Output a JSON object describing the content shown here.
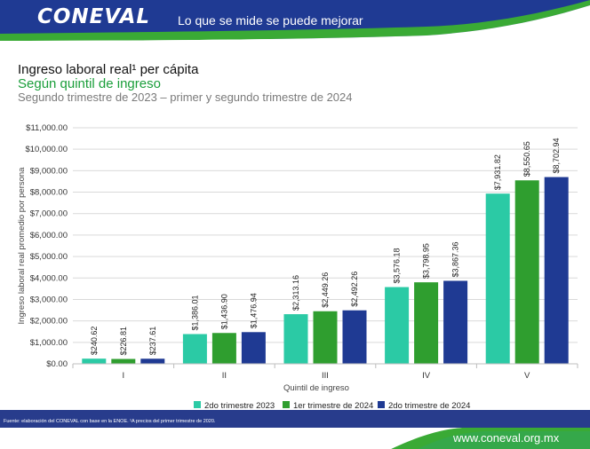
{
  "header": {
    "logo_text": "CONEVAL",
    "slogan": "Lo que se mide se puede mejorar"
  },
  "titles": {
    "line1": "Ingreso laboral real¹ per cápita",
    "line2": "Según quintil de ingreso",
    "line3": "Segundo trimestre de 2023 – primer y segundo trimestre de 2024"
  },
  "footer": {
    "source": "Fuente: elaboración del CONEVAL con base en la ENOE. ¹A precios del primer trimestre de 2020.",
    "url": "www.coneval.org.mx"
  },
  "colors": {
    "header_blue": "#1f3a93",
    "header_green": "#3aaa35",
    "footer_blue": "#283c8c"
  },
  "chart_data": {
    "type": "bar",
    "categories": [
      "I",
      "II",
      "III",
      "IV",
      "V"
    ],
    "series": [
      {
        "name": "2do trimestre 2023",
        "color": "#2bcaa5",
        "values": [
          240.62,
          1386.01,
          2313.16,
          3576.18,
          7931.82
        ],
        "labels": [
          "$240.62",
          "$1,386.01",
          "$2,313.16",
          "$3,576.18",
          "$7,931.82"
        ]
      },
      {
        "name": "1er trimestre de 2024",
        "color": "#2f9e2f",
        "values": [
          226.81,
          1436.9,
          2449.26,
          3798.95,
          8550.65
        ],
        "labels": [
          "$226.81",
          "$1,436.90",
          "$2,449.26",
          "$3,798.95",
          "$8,550.65"
        ]
      },
      {
        "name": "2do trimestre de 2024",
        "color": "#1f3a93",
        "values": [
          237.61,
          1476.94,
          2492.26,
          3867.36,
          8702.94
        ],
        "labels": [
          "$237.61",
          "$1,476.94",
          "$2,492.26",
          "$3,867.36",
          "$8,702.94"
        ]
      }
    ],
    "ylim": [
      0,
      11000
    ],
    "yticks": [
      "$0.00",
      "$1,000.00",
      "$2,000.00",
      "$3,000.00",
      "$4,000.00",
      "$5,000.00",
      "$6,000.00",
      "$7,000.00",
      "$8,000.00",
      "$9,000.00",
      "$10,000.00",
      "$11,000.00"
    ],
    "xlabel": "Quintil de ingreso",
    "ylabel": "Ingreso laboral real promedio por persona",
    "grid": true,
    "legend": "bottom"
  }
}
